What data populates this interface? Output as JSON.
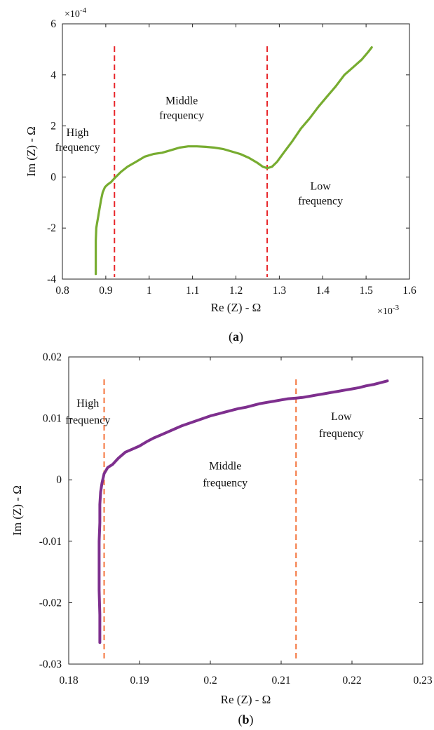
{
  "chart_data": [
    {
      "panel": "(a)",
      "panel_letter": "a",
      "type": "line",
      "xlabel": "Re (Z) - Ω",
      "ylabel": "Im (Z) - Ω",
      "x_exponent_label": "×10",
      "x_exponent": "-3",
      "y_exponent_label": "×10",
      "y_exponent": "-4",
      "xlim": [
        0.8,
        1.6
      ],
      "ylim": [
        -4,
        6
      ],
      "xticks": [
        0.8,
        0.9,
        1,
        1.1,
        1.2,
        1.3,
        1.4,
        1.5,
        1.6
      ],
      "xtick_labels": [
        "0.8",
        "0.9",
        "1",
        "1.1",
        "1.2",
        "1.3",
        "1.4",
        "1.5",
        "1.6"
      ],
      "yticks": [
        -4,
        -2,
        0,
        2,
        4,
        6
      ],
      "ytick_labels": [
        "-4",
        "-2",
        "0",
        "2",
        "4",
        "6"
      ],
      "grid": false,
      "line_color": "#77ac30",
      "divider_color": "#e8262a",
      "dividers_x": [
        0.92,
        1.272
      ],
      "regions": [
        {
          "lines": [
            "High",
            "frequency"
          ],
          "x": 0.835,
          "y": 1.6
        },
        {
          "lines": [
            "Middle",
            "frequency"
          ],
          "x": 1.075,
          "y": 2.85
        },
        {
          "lines": [
            "Low",
            "frequency"
          ],
          "x": 1.395,
          "y": -0.5
        }
      ],
      "series": [
        {
          "x": [
            0.877,
            0.877,
            0.877,
            0.878,
            0.88,
            0.883,
            0.886,
            0.889,
            0.893,
            0.898,
            0.904,
            0.912,
            0.92,
            0.935,
            0.95,
            0.97,
            0.99,
            1.01,
            1.03,
            1.05,
            1.07,
            1.09,
            1.11,
            1.13,
            1.15,
            1.17,
            1.19,
            1.21,
            1.23,
            1.25,
            1.262,
            1.272,
            1.283,
            1.295,
            1.31,
            1.33,
            1.35,
            1.37,
            1.39,
            1.41,
            1.43,
            1.45,
            1.47,
            1.49,
            1.505,
            1.513
          ],
          "y": [
            -3.8,
            -3.2,
            -2.5,
            -2.0,
            -1.8,
            -1.5,
            -1.2,
            -0.9,
            -0.6,
            -0.4,
            -0.3,
            -0.2,
            -0.05,
            0.2,
            0.4,
            0.6,
            0.8,
            0.9,
            0.95,
            1.05,
            1.15,
            1.2,
            1.2,
            1.18,
            1.15,
            1.1,
            1.0,
            0.9,
            0.75,
            0.55,
            0.4,
            0.35,
            0.4,
            0.6,
            0.95,
            1.4,
            1.9,
            2.3,
            2.75,
            3.15,
            3.55,
            4.0,
            4.3,
            4.6,
            4.9,
            5.08
          ]
        }
      ]
    },
    {
      "panel": "(b)",
      "panel_letter": "b",
      "type": "line",
      "xlabel": "Re (Z) - Ω",
      "ylabel": "Im (Z) - Ω",
      "xlim": [
        0.18,
        0.23
      ],
      "ylim": [
        -0.03,
        0.02
      ],
      "xticks": [
        0.18,
        0.19,
        0.2,
        0.21,
        0.22,
        0.23
      ],
      "xtick_labels": [
        "0.18",
        "0.19",
        "0.2",
        "0.21",
        "0.22",
        "0.23"
      ],
      "yticks": [
        -0.03,
        -0.02,
        -0.01,
        0,
        0.01,
        0.02
      ],
      "ytick_labels": [
        "-0.03",
        "-0.02",
        "-0.01",
        "0",
        "0.01",
        "0.02"
      ],
      "grid": false,
      "line_color": "#7e2f8e",
      "divider_color": "#f4733b",
      "dividers_x": [
        0.185,
        0.2121
      ],
      "regions": [
        {
          "lines": [
            "High",
            "frequency"
          ],
          "x": 0.1827,
          "y": 0.0119
        },
        {
          "lines": [
            "Middle",
            "frequency"
          ],
          "x": 0.2021,
          "y": 0.0017
        },
        {
          "lines": [
            "Low",
            "frequency"
          ],
          "x": 0.2185,
          "y": 0.0097
        }
      ],
      "series": [
        {
          "x": [
            0.1844,
            0.1844,
            0.1843,
            0.1843,
            0.1843,
            0.1844,
            0.1844,
            0.1845,
            0.1847,
            0.185,
            0.1855,
            0.1862,
            0.187,
            0.188,
            0.189,
            0.19,
            0.191,
            0.192,
            0.193,
            0.194,
            0.195,
            0.196,
            0.197,
            0.198,
            0.199,
            0.2,
            0.201,
            0.202,
            0.203,
            0.204,
            0.205,
            0.206,
            0.207,
            0.208,
            0.209,
            0.21,
            0.211,
            0.2121,
            0.213,
            0.214,
            0.215,
            0.216,
            0.217,
            0.218,
            0.219,
            0.22,
            0.221,
            0.222,
            0.223,
            0.224,
            0.225
          ],
          "y": [
            -0.0265,
            -0.022,
            -0.018,
            -0.014,
            -0.01,
            -0.007,
            -0.004,
            -0.002,
            -0.0005,
            0.001,
            0.002,
            0.0025,
            0.0035,
            0.0045,
            0.005,
            0.0055,
            0.0062,
            0.0068,
            0.0073,
            0.0078,
            0.0083,
            0.0088,
            0.0092,
            0.0096,
            0.01,
            0.0104,
            0.0107,
            0.011,
            0.0113,
            0.0116,
            0.0118,
            0.0121,
            0.0124,
            0.0126,
            0.0128,
            0.013,
            0.0132,
            0.0133,
            0.0134,
            0.0136,
            0.0138,
            0.014,
            0.0142,
            0.0144,
            0.0146,
            0.0148,
            0.015,
            0.0153,
            0.0155,
            0.0158,
            0.0161
          ]
        }
      ]
    }
  ]
}
